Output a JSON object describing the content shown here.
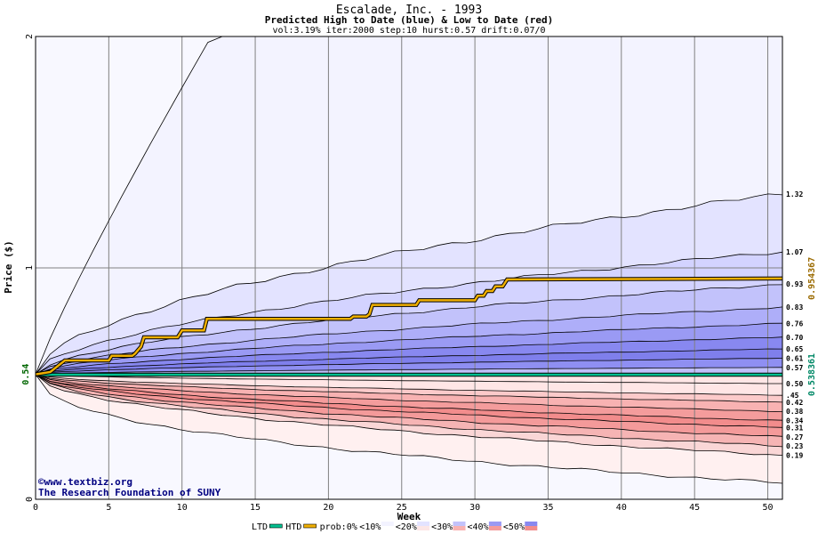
{
  "header": {
    "title": "Escalade, Inc. - 1993",
    "subtitle": "Predicted High to Date (blue) &  Low to Date (red)",
    "params": "vol:3.19% iter:2000 step:10 hurst:0.57 drift:0.07/0"
  },
  "watermark": {
    "line1": "©www.textbiz.org",
    "line2": "The Research Foundation of SUNY"
  },
  "colors": {
    "plot_bg": "#f8f8ff",
    "htd": "#f0b000",
    "ltd": "#00c090",
    "blue_text": "#000080",
    "right_htd_label": "#9a6a00",
    "right_ltd_label": "#008866"
  },
  "chart_data": {
    "type": "area",
    "xlabel": "Week",
    "ylabel": "Price ($)",
    "xlim": [
      0,
      51
    ],
    "ylim": [
      0,
      2
    ],
    "x_ticks": [
      0,
      5,
      10,
      15,
      20,
      25,
      30,
      35,
      40,
      45,
      50
    ],
    "y_ticks": [
      0,
      1,
      2
    ],
    "start_price": 0.54,
    "start_price_label": "0.54",
    "grid": true,
    "upper_envelope_end": 2.0,
    "lower_envelope_end": 0.07,
    "high_quantiles_end": [
      1.32,
      1.07,
      0.93,
      0.83,
      0.76,
      0.7,
      0.65,
      0.61,
      0.57,
      0.5
    ],
    "high_quantile_labels": [
      "1.32",
      "1.07",
      "0.93",
      "0.83",
      "0.76",
      "0.70",
      "0.65",
      "0.61",
      "0.57",
      "0.50"
    ],
    "low_quantiles_end": [
      0.45,
      0.42,
      0.38,
      0.34,
      0.31,
      0.27,
      0.23,
      0.19
    ],
    "low_quantile_labels": [
      ".45",
      "0.42",
      "0.38",
      "0.34",
      "0.31",
      "0.27",
      "0.23",
      "0.19"
    ],
    "htd_series": {
      "name": "HTD",
      "x": [
        0,
        1,
        1.3,
        2,
        5,
        5.2,
        6.6,
        6.8,
        7.2,
        7.4,
        9.7,
        10,
        11.5,
        11.7,
        21.5,
        21.7,
        22.6,
        22.8,
        23,
        26,
        26.2,
        30,
        30.2,
        30.6,
        30.8,
        31.2,
        31.4,
        31.9,
        32.2,
        51
      ],
      "y": [
        0.54,
        0.55,
        0.565,
        0.6,
        0.6,
        0.62,
        0.62,
        0.63,
        0.66,
        0.7,
        0.7,
        0.73,
        0.73,
        0.78,
        0.78,
        0.79,
        0.79,
        0.8,
        0.84,
        0.84,
        0.86,
        0.86,
        0.88,
        0.88,
        0.9,
        0.9,
        0.92,
        0.92,
        0.95,
        0.954367
      ]
    },
    "ltd_series": {
      "name": "LTD",
      "x": [
        0,
        51
      ],
      "y": [
        0.538361,
        0.538361
      ]
    },
    "htd_final_label": "0.954367",
    "ltd_final_label": "0.538361",
    "legend": {
      "position": "bottom",
      "items": [
        "LTD",
        "HTD",
        "prob:0%",
        "<10%",
        "<20%",
        "<30%",
        "<40%",
        "<50%"
      ]
    }
  }
}
